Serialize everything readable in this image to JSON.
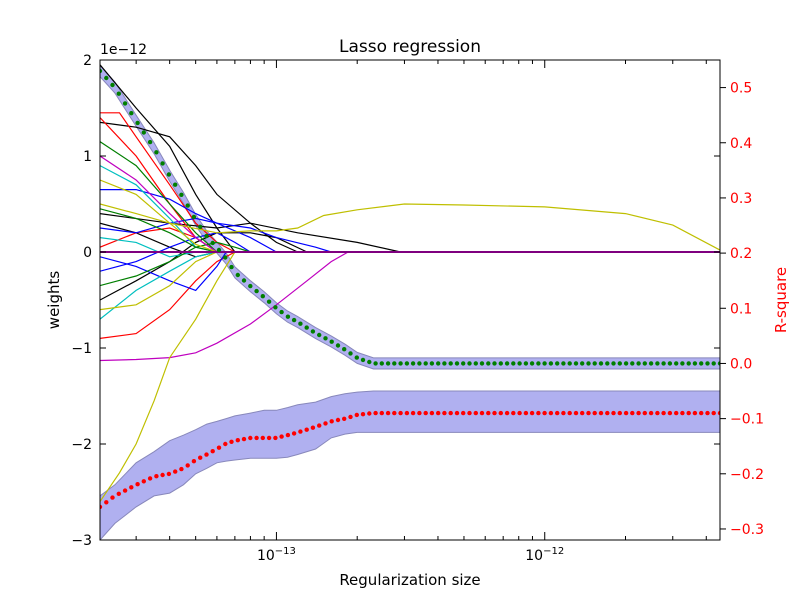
{
  "chart_data": {
    "type": "line",
    "title": "Lasso regression",
    "xlabel": "Regularization size",
    "ylabel": "weights",
    "ylabel_right": "R-square",
    "x_scale": "log",
    "xlim": [
      2.2e-14,
      4.5e-12
    ],
    "ylim": [
      -3e-12,
      2e-12
    ],
    "ylim_right": [
      -0.32,
      0.55
    ],
    "y_offset_label": "1e−12",
    "x_ticks": [
      {
        "value": 1e-13,
        "base": "10",
        "exp": "−13"
      },
      {
        "value": 1e-12,
        "base": "10",
        "exp": "−12"
      }
    ],
    "y_ticks": [
      {
        "value": 2e-12,
        "label": "2"
      },
      {
        "value": 1e-12,
        "label": "1"
      },
      {
        "value": 0,
        "label": "0"
      },
      {
        "value": -1e-12,
        "label": "−1"
      },
      {
        "value": -2e-12,
        "label": "−2"
      },
      {
        "value": -3e-12,
        "label": "−3"
      }
    ],
    "y_right_ticks": [
      {
        "value": 0.5,
        "label": "0.5"
      },
      {
        "value": 0.4,
        "label": "0.4"
      },
      {
        "value": 0.3,
        "label": "0.3"
      },
      {
        "value": 0.2,
        "label": "0.2"
      },
      {
        "value": 0.1,
        "label": "0.1"
      },
      {
        "value": 0.0,
        "label": "0.0"
      },
      {
        "value": -0.1,
        "label": "−0.1"
      },
      {
        "value": -0.2,
        "label": "−0.2"
      },
      {
        "value": -0.3,
        "label": "−0.3"
      }
    ],
    "colors": {
      "right_axis": "#ff0000",
      "train": "#007f00",
      "test": "#ff0000",
      "band": "#b0b0f0",
      "band_edge": "#8888bb"
    },
    "weight_series": [
      {
        "color": "#000000",
        "points": [
          [
            2.2e-14,
            1.95e-12
          ],
          [
            3e-14,
            1.5e-12
          ],
          [
            4e-14,
            1.1e-12
          ],
          [
            5e-14,
            6e-13
          ],
          [
            6e-14,
            2.5e-13
          ],
          [
            7e-14,
            0.0
          ]
        ]
      },
      {
        "color": "#000000",
        "points": [
          [
            2.2e-14,
            1.35e-12
          ],
          [
            3e-14,
            1.3e-12
          ],
          [
            4e-14,
            1.2e-12
          ],
          [
            5e-14,
            9e-13
          ],
          [
            6e-14,
            6e-13
          ],
          [
            8e-14,
            3e-13
          ],
          [
            1e-13,
            1e-13
          ],
          [
            1.2e-13,
            0.0
          ]
        ]
      },
      {
        "color": "#000000",
        "points": [
          [
            2.2e-14,
            4e-13
          ],
          [
            4e-14,
            3e-13
          ],
          [
            6e-14,
            2.5e-13
          ],
          [
            8e-14,
            3e-13
          ],
          [
            1.2e-13,
            2e-13
          ],
          [
            2e-13,
            1e-13
          ],
          [
            2.9e-13,
            0.0
          ]
        ]
      },
      {
        "color": "#000000",
        "points": [
          [
            2.2e-14,
            -5e-13
          ],
          [
            3e-14,
            -3e-13
          ],
          [
            4e-14,
            -1e-13
          ],
          [
            5e-14,
            1e-13
          ],
          [
            6e-14,
            2e-13
          ],
          [
            8e-14,
            2e-13
          ],
          [
            1e-13,
            1.5e-13
          ],
          [
            1.3e-13,
            0.0
          ]
        ]
      },
      {
        "color": "#000000",
        "points": [
          [
            2.2e-14,
            3e-13
          ],
          [
            3e-14,
            2e-13
          ],
          [
            4e-14,
            5e-14
          ],
          [
            5e-14,
            -5e-14
          ],
          [
            6e-14,
            0.0
          ]
        ]
      },
      {
        "color": "#ff0000",
        "points": [
          [
            2.2e-14,
            1.45e-12
          ],
          [
            2.6e-14,
            1.45e-12
          ],
          [
            3e-14,
            1.2e-12
          ],
          [
            4e-14,
            7e-13
          ],
          [
            5e-14,
            3e-13
          ],
          [
            6e-14,
            1e-13
          ],
          [
            7e-14,
            0.0
          ]
        ]
      },
      {
        "color": "#ff0000",
        "points": [
          [
            2.2e-14,
            1.4e-12
          ],
          [
            3e-14,
            1e-12
          ],
          [
            4e-14,
            5e-13
          ],
          [
            5e-14,
            1.5e-13
          ],
          [
            6e-14,
            0.0
          ]
        ]
      },
      {
        "color": "#ff0000",
        "points": [
          [
            2.2e-14,
            5e-14
          ],
          [
            3e-14,
            2e-13
          ],
          [
            4e-14,
            2.5e-13
          ],
          [
            5e-14,
            1.5e-13
          ],
          [
            6e-14,
            0.0
          ]
        ]
      },
      {
        "color": "#ff0000",
        "points": [
          [
            2.2e-14,
            -9e-13
          ],
          [
            3e-14,
            -8.5e-13
          ],
          [
            4e-14,
            -6e-13
          ],
          [
            5e-14,
            -3e-13
          ],
          [
            6e-14,
            -1e-13
          ],
          [
            7e-14,
            0.0
          ]
        ]
      },
      {
        "color": "#0000ff",
        "points": [
          [
            2.2e-14,
            6.5e-13
          ],
          [
            3e-14,
            6.5e-13
          ],
          [
            4e-14,
            5.5e-13
          ],
          [
            5e-14,
            4e-13
          ],
          [
            6e-14,
            3e-13
          ],
          [
            8e-14,
            2.5e-13
          ],
          [
            1e-13,
            1.5e-13
          ],
          [
            1.4e-13,
            5e-14
          ],
          [
            1.6e-13,
            0.0
          ]
        ]
      },
      {
        "color": "#0000ff",
        "points": [
          [
            2.2e-14,
            2.5e-13
          ],
          [
            3e-14,
            2e-13
          ],
          [
            4e-14,
            3e-13
          ],
          [
            5e-14,
            3.5e-13
          ],
          [
            6e-14,
            3e-13
          ],
          [
            8e-14,
            1.5e-13
          ],
          [
            1e-13,
            0.0
          ]
        ]
      },
      {
        "color": "#0000ff",
        "points": [
          [
            2.2e-14,
            -2e-13
          ],
          [
            3e-14,
            -1e-13
          ],
          [
            4e-14,
            5e-14
          ],
          [
            5e-14,
            1.5e-13
          ],
          [
            6e-14,
            2e-13
          ],
          [
            7e-14,
            1e-13
          ],
          [
            8e-14,
            0.0
          ]
        ]
      },
      {
        "color": "#0000ff",
        "points": [
          [
            2.2e-14,
            -5e-14
          ],
          [
            3e-14,
            -1.5e-13
          ],
          [
            4e-14,
            -3e-13
          ],
          [
            5e-14,
            -4e-13
          ],
          [
            6e-14,
            -1.5e-13
          ],
          [
            6.5e-14,
            0.0
          ]
        ]
      },
      {
        "color": "#00bfbf",
        "points": [
          [
            2.2e-14,
            9e-13
          ],
          [
            3e-14,
            7e-13
          ],
          [
            4e-14,
            3.5e-13
          ],
          [
            5e-14,
            5e-14
          ],
          [
            6e-14,
            0.0
          ]
        ]
      },
      {
        "color": "#00bfbf",
        "points": [
          [
            2.2e-14,
            -7e-13
          ],
          [
            3e-14,
            -4e-13
          ],
          [
            4e-14,
            -2e-13
          ],
          [
            5e-14,
            -5e-14
          ],
          [
            6e-14,
            0.0
          ]
        ]
      },
      {
        "color": "#00bfbf",
        "points": [
          [
            2.2e-14,
            1.5e-13
          ],
          [
            3e-14,
            1e-13
          ],
          [
            4e-14,
            -5e-14
          ],
          [
            5e-14,
            0.0
          ]
        ]
      },
      {
        "color": "#007f00",
        "points": [
          [
            2.2e-14,
            1.15e-12
          ],
          [
            3e-14,
            9e-13
          ],
          [
            4e-14,
            5e-13
          ],
          [
            5e-14,
            2e-13
          ],
          [
            6e-14,
            0.0
          ]
        ]
      },
      {
        "color": "#007f00",
        "points": [
          [
            2.2e-14,
            -3.5e-13
          ],
          [
            3e-14,
            -2.5e-13
          ],
          [
            4e-14,
            -1e-13
          ],
          [
            5e-14,
            5e-14
          ],
          [
            6e-14,
            1e-13
          ],
          [
            7e-14,
            5e-14
          ],
          [
            8e-14,
            0.0
          ]
        ]
      },
      {
        "color": "#007f00",
        "points": [
          [
            2.2e-14,
            4.5e-13
          ],
          [
            3e-14,
            3.5e-13
          ],
          [
            4e-14,
            2e-13
          ],
          [
            5e-14,
            5e-14
          ],
          [
            6e-14,
            0.0
          ]
        ]
      },
      {
        "color": "#bf00bf",
        "points": [
          [
            2.2e-14,
            1e-12
          ],
          [
            3e-14,
            7.5e-13
          ],
          [
            4e-14,
            4e-13
          ],
          [
            5e-14,
            1.5e-13
          ],
          [
            6e-14,
            0.0
          ]
        ]
      },
      {
        "color": "#bf00bf",
        "points": [
          [
            2.2e-14,
            -1.13e-12
          ],
          [
            3e-14,
            -1.12e-12
          ],
          [
            4e-14,
            -1.1e-12
          ],
          [
            5e-14,
            -1.05e-12
          ],
          [
            6e-14,
            -9.5e-13
          ],
          [
            8e-14,
            -7.5e-13
          ],
          [
            1e-13,
            -5.5e-13
          ],
          [
            1.3e-13,
            -3e-13
          ],
          [
            1.6e-13,
            -1e-13
          ],
          [
            1.85e-13,
            0.0
          ]
        ]
      },
      {
        "color": "#bfbf00",
        "points": [
          [
            2.2e-14,
            -2.6e-12
          ],
          [
            2.6e-14,
            -2.3e-12
          ],
          [
            3e-14,
            -2e-12
          ],
          [
            3.5e-14,
            -1.55e-12
          ],
          [
            4e-14,
            -1.1e-12
          ],
          [
            5e-14,
            -7e-13
          ],
          [
            6e-14,
            -3e-13
          ],
          [
            7e-14,
            0.0
          ]
        ]
      },
      {
        "color": "#bfbf00",
        "points": [
          [
            2.2e-14,
            5e-13
          ],
          [
            3e-14,
            4e-13
          ],
          [
            4e-14,
            3e-13
          ],
          [
            6e-14,
            2e-13
          ],
          [
            8e-14,
            2.2e-13
          ],
          [
            1e-13,
            2.2e-13
          ],
          [
            1.2e-13,
            2.5e-13
          ],
          [
            1.5e-13,
            3.8e-13
          ],
          [
            2e-13,
            4.4e-13
          ],
          [
            3e-13,
            5e-13
          ],
          [
            5e-13,
            4.9e-13
          ],
          [
            1e-12,
            4.7e-13
          ],
          [
            2e-12,
            4e-13
          ],
          [
            3e-12,
            2.8e-13
          ],
          [
            4.5e-12,
            2e-14
          ]
        ]
      },
      {
        "color": "#bfbf00",
        "points": [
          [
            2.2e-14,
            -6e-13
          ],
          [
            3e-14,
            -5.5e-13
          ],
          [
            4e-14,
            -3.5e-13
          ],
          [
            5e-14,
            -1e-13
          ],
          [
            6e-14,
            0.0
          ]
        ]
      },
      {
        "color": "#bfbf00",
        "points": [
          [
            2.2e-14,
            7.5e-13
          ],
          [
            3e-14,
            6e-13
          ],
          [
            4e-14,
            3e-13
          ],
          [
            5e-14,
            8e-14
          ],
          [
            6e-14,
            0.0
          ]
        ]
      }
    ],
    "zero_line_color": "#7f007f",
    "train_r2": {
      "x": [
        2.2e-14,
        2.5e-14,
        3e-14,
        3.5e-14,
        4e-14,
        4.5e-14,
        5e-14,
        5.5e-14,
        6e-14,
        6.5e-14,
        7e-14,
        8e-14,
        9e-14,
        1e-13,
        1.1e-13,
        1.2e-13,
        1.4e-13,
        1.6e-13,
        1.8e-13,
        2e-13,
        2.3e-13,
        3e-13,
        1e-12,
        4.5e-12
      ],
      "y": [
        0.53,
        0.5,
        0.44,
        0.39,
        0.34,
        0.3,
        0.26,
        0.23,
        0.21,
        0.19,
        0.165,
        0.14,
        0.12,
        0.1,
        0.085,
        0.075,
        0.055,
        0.04,
        0.025,
        0.01,
        0.0,
        0.0,
        0.0,
        0.0
      ],
      "band": 0.01
    },
    "test_r2": {
      "x": [
        2.2e-14,
        2.5e-14,
        3e-14,
        3.5e-14,
        4e-14,
        4.5e-14,
        5e-14,
        5.5e-14,
        6e-14,
        6.5e-14,
        7e-14,
        8e-14,
        9e-14,
        1e-13,
        1.1e-13,
        1.2e-13,
        1.4e-13,
        1.6e-13,
        1.8e-13,
        2e-13,
        2.3e-13,
        3e-13,
        1e-12,
        4.5e-12
      ],
      "y": [
        -0.26,
        -0.24,
        -0.22,
        -0.205,
        -0.2,
        -0.19,
        -0.175,
        -0.165,
        -0.155,
        -0.145,
        -0.14,
        -0.135,
        -0.135,
        -0.135,
        -0.13,
        -0.125,
        -0.115,
        -0.105,
        -0.1,
        -0.093,
        -0.09,
        -0.09,
        -0.09,
        -0.09
      ],
      "band_lo": [
        -0.32,
        -0.29,
        -0.26,
        -0.24,
        -0.235,
        -0.22,
        -0.2,
        -0.19,
        -0.18,
        -0.177,
        -0.175,
        -0.172,
        -0.172,
        -0.172,
        -0.17,
        -0.165,
        -0.155,
        -0.135,
        -0.128,
        -0.125,
        -0.125,
        -0.125,
        -0.125,
        -0.125
      ],
      "band_hi": [
        -0.24,
        -0.22,
        -0.18,
        -0.16,
        -0.14,
        -0.13,
        -0.12,
        -0.11,
        -0.105,
        -0.1,
        -0.095,
        -0.09,
        -0.085,
        -0.085,
        -0.08,
        -0.075,
        -0.07,
        -0.06,
        -0.055,
        -0.052,
        -0.05,
        -0.05,
        -0.05,
        -0.05
      ]
    }
  }
}
